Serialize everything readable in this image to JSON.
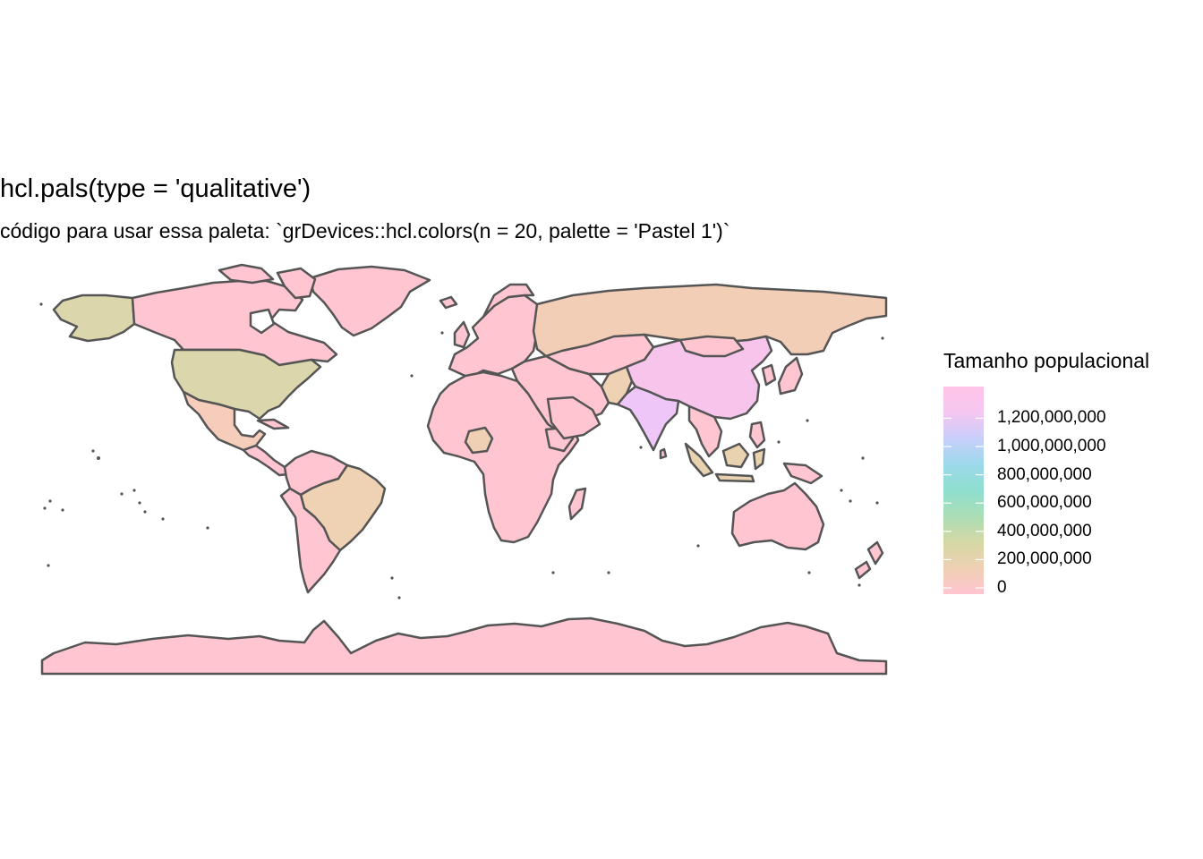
{
  "title": "hcl.pals(type = 'qualitative')",
  "subtitle": "código para usar essa paleta: `grDevices::hcl.colors(n = 20, palette = 'Pastel 1')`",
  "map": {
    "projection": "equirectangular",
    "border_color": "#555555",
    "regions": [
      {
        "name": "Antarctica",
        "population_band": "0",
        "fill": "#FFC5D0"
      },
      {
        "name": "Greenland",
        "population_band": "0",
        "fill": "#FFC5D0"
      },
      {
        "name": "Canada",
        "population_band": "0",
        "fill": "#FFC5D0"
      },
      {
        "name": "Alaska (United States)",
        "population_band": "~320,000,000",
        "fill": "#DBD6AB"
      },
      {
        "name": "United States",
        "population_band": "~320,000,000",
        "fill": "#DBD6AB"
      },
      {
        "name": "Mexico",
        "population_band": "~120,000,000",
        "fill": "#F5CDBA"
      },
      {
        "name": "Brazil",
        "population_band": "~200,000,000",
        "fill": "#EED2B3"
      },
      {
        "name": "Russia",
        "population_band": "~145,000,000",
        "fill": "#F3CEB7"
      },
      {
        "name": "China",
        "population_band": "~1,380,000,000",
        "fill": "#F7C5EC"
      },
      {
        "name": "India",
        "population_band": "~1,300,000,000",
        "fill": "#EEC7F8"
      },
      {
        "name": "Indonesia",
        "population_band": "~255,000,000",
        "fill": "#E9D2B0"
      },
      {
        "name": "Pakistan",
        "population_band": "~190,000,000",
        "fill": "#EFD1B4"
      },
      {
        "name": "Nigeria",
        "population_band": "~180,000,000",
        "fill": "#EFD0B5"
      },
      {
        "name": "Australia",
        "population_band": "~24,000,000",
        "fill": "#FFC5D0"
      }
    ]
  },
  "legend": {
    "title": "Tamanho populacional",
    "labels": [
      "1,200,000,000",
      "1,000,000,000",
      "800,000,000",
      "600,000,000",
      "400,000,000",
      "200,000,000",
      "0"
    ],
    "domain": [
      0,
      1380000000
    ],
    "gradient_colors": [
      "#FFC5D0",
      "#EED0B3",
      "#D5D8A5",
      "#AADDB5",
      "#8FDFCF",
      "#9CD9EC",
      "#C8CFFA",
      "#F5C6F0",
      "#FFC5E8"
    ]
  }
}
